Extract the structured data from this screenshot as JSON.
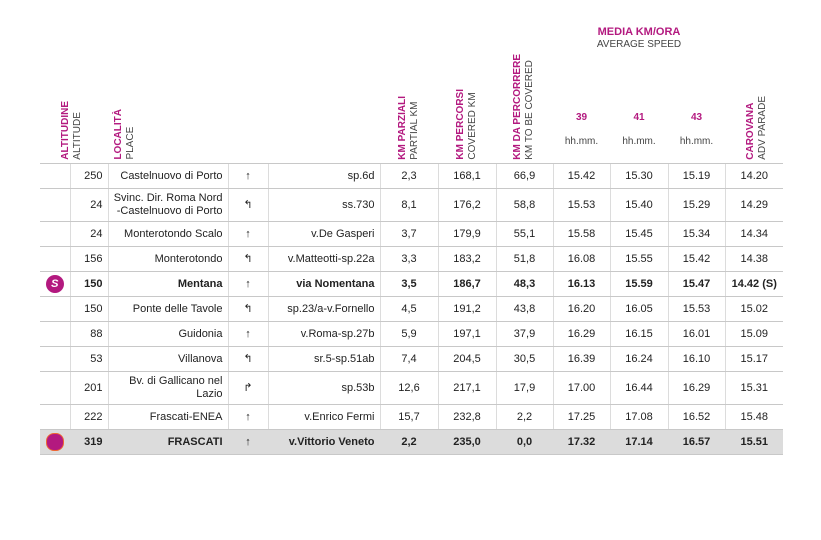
{
  "header": {
    "altitude": {
      "it": "ALTITUDINE",
      "en": "ALTITUDE"
    },
    "place": {
      "it": "LOCALITÀ",
      "en": "PLACE"
    },
    "partial": {
      "it": "KM PARZIALI",
      "en": "PARTIAL KM"
    },
    "covered": {
      "it": "KM PERCORSI",
      "en": "COVERED KM"
    },
    "to_cover": {
      "it": "KM DA PERCORRERE",
      "en": "KM TO BE COVERED"
    },
    "speed": {
      "it": "MEDIA KM/ORA",
      "en": "AVERAGE SPEED"
    },
    "speeds": [
      {
        "value": "39",
        "unit": "hh.mm."
      },
      {
        "value": "41",
        "unit": "hh.mm."
      },
      {
        "value": "43",
        "unit": "hh.mm."
      }
    ],
    "caravan": {
      "it": "CAROVANA",
      "en": "ADV PARADE"
    }
  },
  "table": {
    "rows": [
      {
        "cells": [
          "250",
          "Castelnuovo di Porto",
          "↑",
          "sp.6d",
          "2,3",
          "168,1",
          "66,9",
          "15.42",
          "15.30",
          "15.19",
          "14.20"
        ]
      },
      {
        "cells": [
          "24",
          "Svinc. Dir. Roma Nord -Castelnuovo di Porto",
          "↰",
          "ss.730",
          "8,1",
          "176,2",
          "58,8",
          "15.53",
          "15.40",
          "15.29",
          "14.29"
        ]
      },
      {
        "cells": [
          "24",
          "Monterotondo Scalo",
          "↑",
          "v.De Gasperi",
          "3,7",
          "179,9",
          "55,1",
          "15.58",
          "15.45",
          "15.34",
          "14.34"
        ]
      },
      {
        "cells": [
          "156",
          "Monterotondo",
          "↰",
          "v.Matteotti-sp.22a",
          "3,3",
          "183,2",
          "51,8",
          "16.08",
          "15.55",
          "15.42",
          "14.38"
        ]
      },
      {
        "marker": "S",
        "cells": [
          "150",
          "Mentana",
          "↑",
          "via Nomentana",
          "3,5",
          "186,7",
          "48,3",
          "16.13",
          "15.59",
          "15.47",
          "14.42 (S)"
        ]
      },
      {
        "cells": [
          "150",
          "Ponte delle Tavole",
          "↰",
          "sp.23/a-v.Fornello",
          "4,5",
          "191,2",
          "43,8",
          "16.20",
          "16.05",
          "15.53",
          "15.02"
        ]
      },
      {
        "cells": [
          "88",
          "Guidonia",
          "↑",
          "v.Roma-sp.27b",
          "5,9",
          "197,1",
          "37,9",
          "16.29",
          "16.15",
          "16.01",
          "15.09"
        ]
      },
      {
        "cells": [
          "53",
          "Villanova",
          "↰",
          "sr.5-sp.51ab",
          "7,4",
          "204,5",
          "30,5",
          "16.39",
          "16.24",
          "16.10",
          "15.17"
        ]
      },
      {
        "cells": [
          "201",
          "Bv. di Gallicano nel Lazio",
          "↱",
          "sp.53b",
          "12,6",
          "217,1",
          "17,9",
          "17.00",
          "16.44",
          "16.29",
          "15.31"
        ]
      },
      {
        "cells": [
          "222",
          "Frascati-ENEA",
          "↑",
          "v.Enrico Fermi",
          "15,7",
          "232,8",
          "2,2",
          "17.25",
          "17.08",
          "16.52",
          "15.48"
        ]
      },
      {
        "cells": [
          "319",
          "FRASCATI",
          "↑",
          "v.Vittorio Veneto",
          "2,2",
          "235,0",
          "0,0",
          "17.32",
          "17.14",
          "16.57",
          "15.51"
        ]
      }
    ]
  }
}
